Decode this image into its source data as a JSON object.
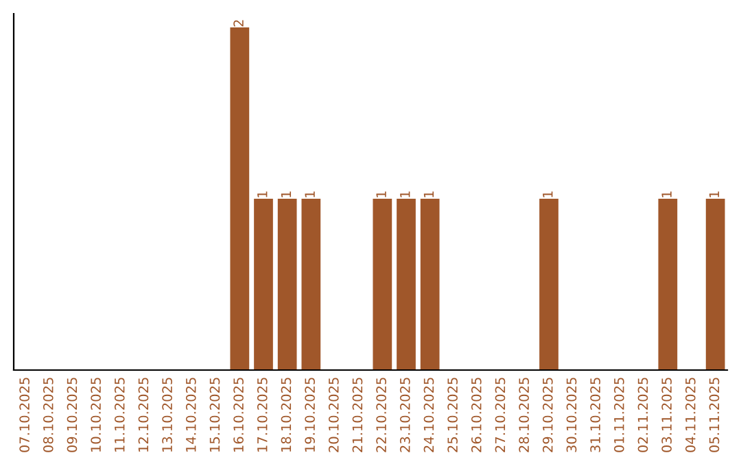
{
  "chart_data": {
    "type": "bar",
    "categories": [
      "07.10.2025",
      "08.10.2025",
      "09.10.2025",
      "10.10.2025",
      "11.10.2025",
      "12.10.2025",
      "13.10.2025",
      "14.10.2025",
      "15.10.2025",
      "16.10.2025",
      "17.10.2025",
      "18.10.2025",
      "19.10.2025",
      "20.10.2025",
      "21.10.2025",
      "22.10.2025",
      "23.10.2025",
      "24.10.2025",
      "25.10.2025",
      "26.10.2025",
      "27.10.2025",
      "28.10.2025",
      "29.10.2025",
      "30.10.2025",
      "31.10.2025",
      "01.11.2025",
      "02.11.2025",
      "03.11.2025",
      "04.11.2025",
      "05.11.2025"
    ],
    "values": [
      0,
      0,
      0,
      0,
      0,
      0,
      0,
      0,
      0,
      2,
      1,
      1,
      1,
      0,
      0,
      1,
      1,
      1,
      0,
      0,
      0,
      0,
      1,
      0,
      0,
      0,
      0,
      1,
      0,
      1
    ],
    "value_labels": [
      null,
      null,
      null,
      null,
      null,
      null,
      null,
      null,
      null,
      "2",
      "1",
      "1",
      "1",
      null,
      null,
      "1",
      "1",
      "1",
      null,
      null,
      null,
      null,
      "1",
      null,
      null,
      null,
      null,
      "1",
      null,
      "1"
    ],
    "color": "#a0572a",
    "ylim": [
      0,
      2.08
    ],
    "tick_labels": "x",
    "grid": false,
    "legend": false
  }
}
